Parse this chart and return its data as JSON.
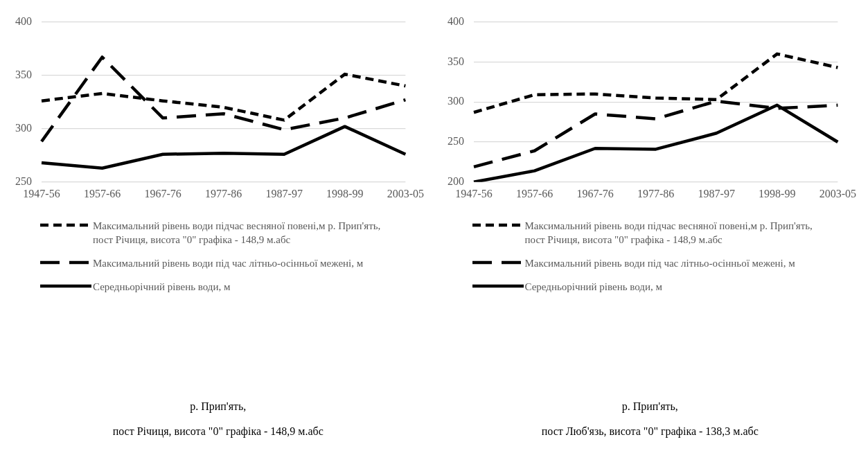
{
  "chart_data": [
    {
      "type": "line",
      "categories": [
        "1947-56",
        "1957-66",
        "1967-76",
        "1977-86",
        "1987-97",
        "1998-99",
        "2003-05"
      ],
      "ylim": [
        250,
        400
      ],
      "yticks": [
        250,
        300,
        350,
        400
      ],
      "grid": "y",
      "legend": "bottom",
      "marker": "none",
      "series": [
        {
          "name": "Максимальний рівень води підчас весняної повені,м р. Прип'ять, пост Річиця, висота \"0\" графіка - 148,9 м.абс",
          "color": "#000000",
          "line_style": "dashed",
          "values": [
            326,
            333,
            326,
            320,
            308,
            351,
            340
          ]
        },
        {
          "name": "Максимальний рівень води під час літньо-осінньої межені, м",
          "color": "#000000",
          "line_style": "dashed",
          "values": [
            288,
            367,
            310,
            314,
            299,
            310,
            327
          ]
        },
        {
          "name": "Середньорічний  рівень води, м",
          "color": "#000000",
          "line_style": "solid",
          "values": [
            268,
            263,
            276,
            277,
            276,
            302,
            276
          ]
        }
      ],
      "annotations": [
        "р. Прип'ять,",
        "пост Річиця, висота \"0\" графіка - 148,9 м.абс"
      ]
    },
    {
      "type": "line",
      "categories": [
        "1947-56",
        "1957-66",
        "1967-76",
        "1977-86",
        "1987-97",
        "1998-99",
        "2003-05"
      ],
      "ylim": [
        200,
        400
      ],
      "yticks": [
        200,
        250,
        300,
        350,
        400
      ],
      "grid": "y",
      "legend": "bottom",
      "marker": "none",
      "series": [
        {
          "name": "Максимальний рівень води підчас весняної повені,м р. Прип'ять, пост Річиця, висота \"0\" графіка - 148,9 м.абс",
          "color": "#000000",
          "line_style": "dashed",
          "values": [
            287,
            309,
            310,
            305,
            303,
            360,
            343
          ]
        },
        {
          "name": "Максимальний рівень води під час літньо-осінньої межені, м",
          "color": "#000000",
          "line_style": "dashed",
          "values": [
            219,
            239,
            285,
            279,
            301,
            292,
            296
          ]
        },
        {
          "name": "Середньорічний  рівень води, м",
          "color": "#000000",
          "line_style": "solid",
          "values": [
            200,
            214,
            242,
            241,
            261,
            296,
            250
          ]
        }
      ],
      "annotations": [
        "р. Прип'ять,",
        "пост Люб'язь, висота \"0\" графіка - 138,3 м.абс"
      ]
    }
  ]
}
